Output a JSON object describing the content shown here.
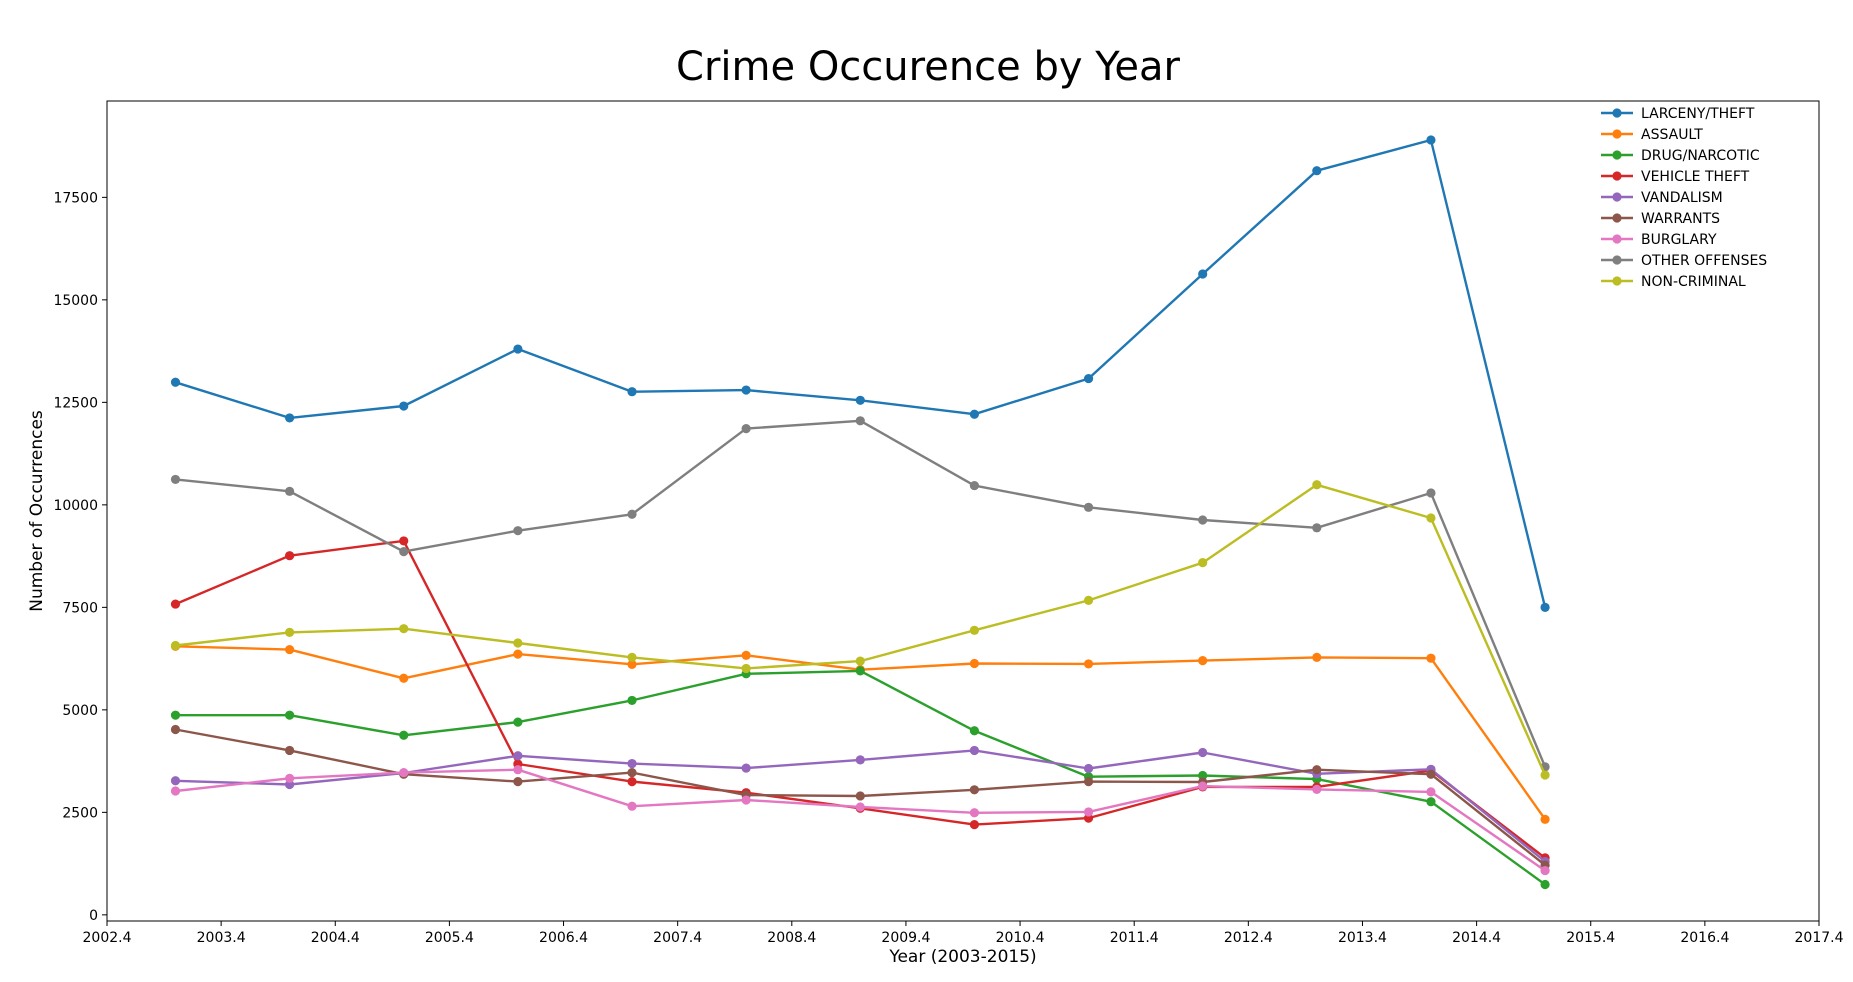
{
  "chart_data": {
    "type": "line",
    "title": "Crime Occurence by Year",
    "xlabel": "Year (2003-2015)",
    "ylabel": "Number of Occurrences",
    "x": [
      2003,
      2004,
      2005,
      2006,
      2007,
      2008,
      2009,
      2010,
      2011,
      2012,
      2013,
      2014,
      2015
    ],
    "xlim": [
      2002.4,
      2017.4
    ],
    "ylim": [
      -150,
      19850
    ],
    "x_ticks": [
      2002.4,
      2003.4,
      2004.4,
      2005.4,
      2006.4,
      2007.4,
      2008.4,
      2009.4,
      2010.4,
      2011.4,
      2012.4,
      2013.4,
      2014.4,
      2015.4,
      2016.4,
      2017.4
    ],
    "x_tick_labels": [
      "2002.4",
      "2003.4",
      "2004.4",
      "2005.4",
      "2006.4",
      "2007.4",
      "2008.4",
      "2009.4",
      "2010.4",
      "2011.4",
      "2012.4",
      "2013.4",
      "2014.4",
      "2015.4",
      "2016.4",
      "2017.4"
    ],
    "y_ticks": [
      0,
      2500,
      5000,
      7500,
      10000,
      12500,
      15000,
      17500
    ],
    "y_tick_labels": [
      "0",
      "2500",
      "5000",
      "7500",
      "10000",
      "12500",
      "15000",
      "17500"
    ],
    "grid": false,
    "legend_position": "top-right",
    "series": [
      {
        "name": "LARCENY/THEFT",
        "color": "#1f77b4",
        "values": [
          12990,
          12120,
          12410,
          13800,
          12760,
          12800,
          12550,
          12210,
          13080,
          15630,
          18150,
          18900,
          7500
        ]
      },
      {
        "name": "ASSAULT",
        "color": "#ff7f0e",
        "values": [
          6550,
          6470,
          5770,
          6360,
          6110,
          6330,
          5980,
          6130,
          6120,
          6200,
          6280,
          6260,
          2330
        ]
      },
      {
        "name": "DRUG/NARCOTIC",
        "color": "#2ca02c",
        "values": [
          4870,
          4870,
          4380,
          4700,
          5230,
          5880,
          5950,
          4490,
          3370,
          3400,
          3310,
          2760,
          740
        ]
      },
      {
        "name": "VEHICLE THEFT",
        "color": "#d62728",
        "values": [
          7580,
          8760,
          9120,
          3680,
          3250,
          2980,
          2600,
          2200,
          2360,
          3120,
          3120,
          3520,
          1390
        ]
      },
      {
        "name": "VANDALISM",
        "color": "#9467bd",
        "values": [
          3270,
          3180,
          3460,
          3880,
          3690,
          3580,
          3780,
          4010,
          3570,
          3960,
          3440,
          3550,
          1300
        ]
      },
      {
        "name": "WARRANTS",
        "color": "#8c564b",
        "values": [
          4520,
          4010,
          3430,
          3250,
          3470,
          2920,
          2900,
          3050,
          3250,
          3240,
          3540,
          3430,
          1210
        ]
      },
      {
        "name": "BURGLARY",
        "color": "#e377c2",
        "values": [
          3020,
          3330,
          3470,
          3540,
          2650,
          2800,
          2630,
          2490,
          2510,
          3140,
          3060,
          3000,
          1080
        ]
      },
      {
        "name": "OTHER OFFENSES",
        "color": "#7f7f7f",
        "values": [
          10620,
          10330,
          8860,
          9370,
          9770,
          11860,
          12050,
          10470,
          9940,
          9630,
          9440,
          10290,
          3610
        ]
      },
      {
        "name": "NON-CRIMINAL",
        "color": "#bcbd22",
        "values": [
          6570,
          6890,
          6980,
          6630,
          6280,
          6010,
          6190,
          6940,
          7670,
          8590,
          10490,
          9680,
          3410
        ]
      }
    ]
  }
}
